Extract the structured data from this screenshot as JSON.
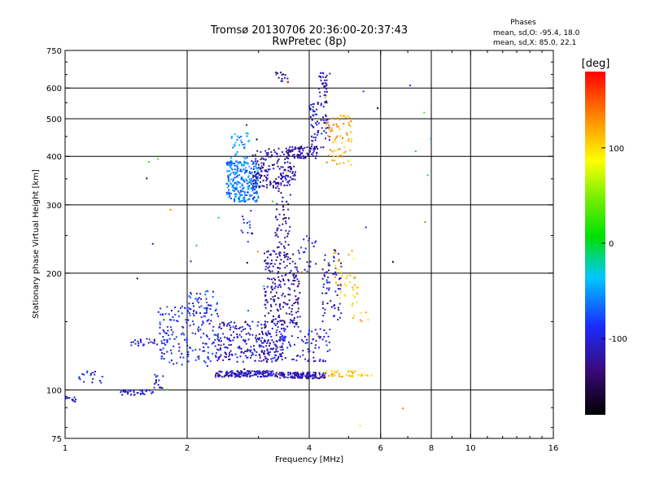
{
  "chart_data": {
    "type": "scatter",
    "title": "Tromsø 20130706 20:36:00-20:37:43",
    "subtitle": "RwPretec (8p)",
    "xlabel": "Frequency [MHz]",
    "ylabel": "Stationary phase Virtual Height [km]",
    "x_scale": "log",
    "y_scale": "log",
    "xlim": [
      1,
      16
    ],
    "ylim": [
      75,
      750
    ],
    "x_ticks": [
      1,
      2,
      4,
      6,
      8,
      10,
      16
    ],
    "y_ticks": [
      75,
      100,
      200,
      300,
      400,
      500,
      600,
      750
    ],
    "x_gridlines": [
      2,
      4,
      6,
      8,
      10
    ],
    "y_gridlines": [
      100,
      200,
      300,
      400,
      500,
      600
    ],
    "grid": true,
    "legend": {
      "heading": "Phases",
      "lines": [
        "mean, sd,O: -95.4, 18.0",
        "mean, sd,X:  85.0, 22.1"
      ],
      "placement": "top-right"
    },
    "colorbar": {
      "label": "[deg]",
      "range": [
        -180,
        180
      ],
      "ticks": [
        100,
        0,
        -100
      ],
      "colormap": "rainbow"
    },
    "clusters": [
      {
        "x": [
          1.0,
          1.08
        ],
        "y": [
          93,
          97
        ],
        "phase": -115,
        "n": 12
      },
      {
        "x": [
          1.08,
          1.25
        ],
        "y": [
          104,
          112
        ],
        "phase": -95,
        "n": 18
      },
      {
        "x": [
          1.35,
          1.65
        ],
        "y": [
          97,
          100
        ],
        "phase": -105,
        "n": 40
      },
      {
        "x": [
          1.62,
          1.75
        ],
        "y": [
          100,
          110
        ],
        "phase": -100,
        "n": 14
      },
      {
        "x": [
          1.45,
          1.8
        ],
        "y": [
          130,
          136
        ],
        "phase": -100,
        "n": 30
      },
      {
        "x": [
          1.7,
          2.4
        ],
        "y": [
          115,
          165
        ],
        "phase": -95,
        "n": 170
      },
      {
        "x": [
          2.0,
          2.4
        ],
        "y": [
          155,
          180
        ],
        "phase": -85,
        "n": 40
      },
      {
        "x": [
          2.35,
          3.3
        ],
        "y": [
          108,
          112
        ],
        "phase": -110,
        "n": 160
      },
      {
        "x": [
          3.3,
          4.4
        ],
        "y": [
          107,
          111
        ],
        "phase": -115,
        "n": 130
      },
      {
        "x": [
          4.35,
          5.7
        ],
        "y": [
          108,
          112
        ],
        "phase": 110,
        "n": 45
      },
      {
        "x": [
          2.35,
          3.5
        ],
        "y": [
          118,
          150
        ],
        "phase": -110,
        "n": 240
      },
      {
        "x": [
          3.0,
          4.5
        ],
        "y": [
          118,
          145
        ],
        "phase": -105,
        "n": 110
      },
      {
        "x": [
          3.1,
          3.8
        ],
        "y": [
          145,
          230
        ],
        "phase": -120,
        "n": 220
      },
      {
        "x": [
          3.3,
          3.6
        ],
        "y": [
          230,
          330
        ],
        "phase": -120,
        "n": 50
      },
      {
        "x": [
          3.4,
          3.7
        ],
        "y": [
          335,
          380
        ],
        "phase": -115,
        "n": 40
      },
      {
        "x": [
          4.3,
          4.8
        ],
        "y": [
          150,
          230
        ],
        "phase": -110,
        "n": 70
      },
      {
        "x": [
          4.6,
          5.2
        ],
        "y": [
          170,
          230
        ],
        "phase": 110,
        "n": 30
      },
      {
        "x": [
          5.1,
          5.6
        ],
        "y": [
          150,
          185
        ],
        "phase": 110,
        "n": 16
      },
      {
        "x": [
          2.5,
          3.0
        ],
        "y": [
          305,
          390
        ],
        "phase": -60,
        "n": 280
      },
      {
        "x": [
          2.55,
          2.85
        ],
        "y": [
          390,
          460
        ],
        "phase": -55,
        "n": 30
      },
      {
        "x": [
          2.9,
          3.6
        ],
        "y": [
          330,
          420
        ],
        "phase": -120,
        "n": 140
      },
      {
        "x": [
          3.5,
          4.2
        ],
        "y": [
          395,
          425
        ],
        "phase": -120,
        "n": 80
      },
      {
        "x": [
          4.0,
          4.5
        ],
        "y": [
          420,
          560
        ],
        "phase": -110,
        "n": 70
      },
      {
        "x": [
          3.3,
          3.6
        ],
        "y": [
          620,
          660
        ],
        "phase": -125,
        "n": 14
      },
      {
        "x": [
          4.2,
          4.5
        ],
        "y": [
          570,
          660
        ],
        "phase": -115,
        "n": 30
      },
      {
        "x": [
          4.4,
          5.1
        ],
        "y": [
          380,
          510
        ],
        "phase": 120,
        "n": 70
      },
      {
        "x": [
          2.7,
          2.9
        ],
        "y": [
          240,
          290
        ],
        "phase": -90,
        "n": 14
      },
      {
        "x": [
          3.8,
          4.2
        ],
        "y": [
          200,
          250
        ],
        "phase": -105,
        "n": 20
      },
      {
        "x": [
          1.5,
          8.0
        ],
        "y": [
          80,
          650
        ],
        "phase": -80,
        "n": 40
      }
    ]
  }
}
